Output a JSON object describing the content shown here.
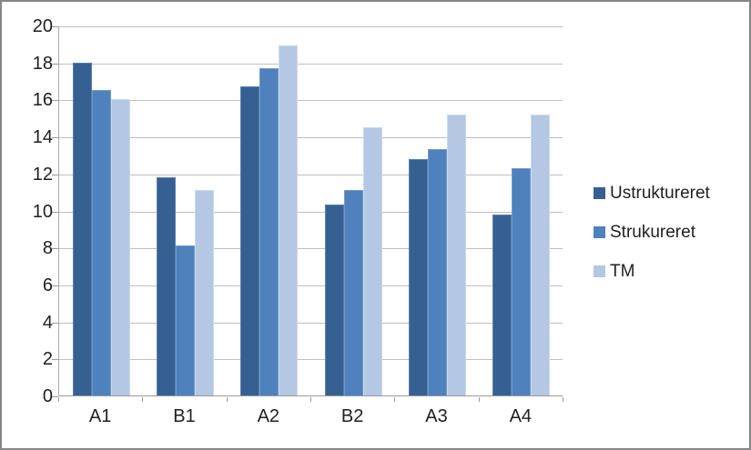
{
  "chart_data": {
    "type": "bar",
    "title": "",
    "xlabel": "",
    "ylabel": "",
    "categories": [
      "A1",
      "B1",
      "A2",
      "B2",
      "A3",
      "A4"
    ],
    "series": [
      {
        "name": "Ustruktureret",
        "color": "#376092",
        "edge_color": "#5a80ac",
        "values": [
          18.0,
          11.8,
          16.7,
          10.3,
          12.8,
          9.8
        ]
      },
      {
        "name": "Strukureret",
        "color": "#4f81bd",
        "edge_color": "#7099cc",
        "values": [
          16.5,
          8.1,
          17.7,
          11.1,
          13.3,
          12.3
        ]
      },
      {
        "name": "TM",
        "color": "#b4c7e3",
        "edge_color": "#ccd9ed",
        "values": [
          16.0,
          11.1,
          18.9,
          14.5,
          15.2,
          15.2
        ]
      }
    ],
    "ylim": [
      0,
      20
    ],
    "yticks": [
      0,
      2,
      4,
      6,
      8,
      10,
      12,
      14,
      16,
      18,
      20
    ],
    "grid": true,
    "legend_position": "right"
  },
  "colors": {
    "background": "#ffffff",
    "frame_border": "#858585",
    "gridline": "#bfbfbf",
    "axis": "#9a9a9a",
    "text": "#1f1f1f"
  }
}
